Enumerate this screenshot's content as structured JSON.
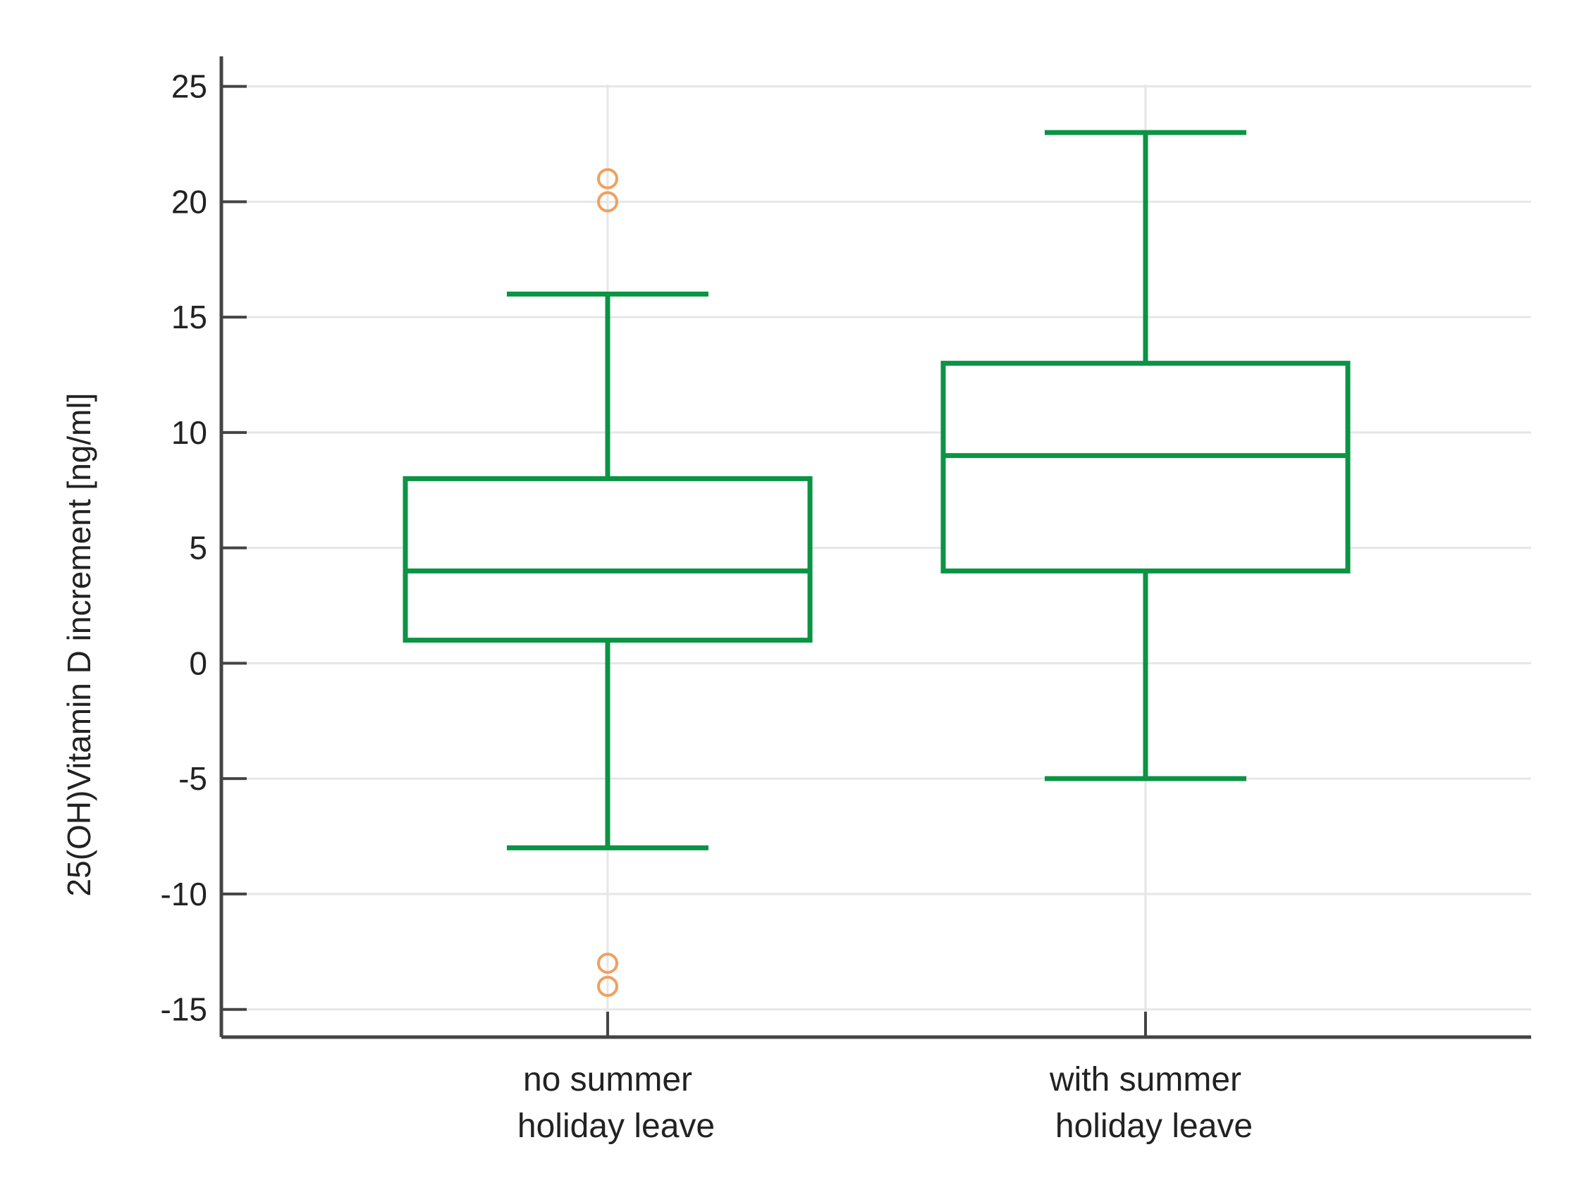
{
  "chart_data": {
    "type": "box",
    "title": "",
    "xlabel": "",
    "ylabel": "25(OH)Vitamin D increment [ng/ml]",
    "ylim": [
      -16.2,
      26.3
    ],
    "yticks": [
      25,
      20,
      15,
      10,
      5,
      0,
      -5,
      -10,
      -15
    ],
    "grid": true,
    "categories": [
      {
        "line1": "no summer",
        "line2": "holiday leave"
      },
      {
        "line1": "with summer",
        "line2": "holiday leave"
      }
    ],
    "boxes": [
      {
        "whisker_low": -8,
        "q1": 1,
        "median": 4,
        "q3": 8,
        "whisker_high": 16,
        "outliers": [
          20,
          21,
          -13,
          -14
        ]
      },
      {
        "whisker_low": -5,
        "q1": 4,
        "median": 9,
        "q3": 13,
        "whisker_high": 23,
        "outliers": []
      }
    ],
    "colors": {
      "box": "#0a9444",
      "outlier": "#f0a060",
      "grid": "#e6e6e6",
      "axis": "#444444"
    }
  }
}
